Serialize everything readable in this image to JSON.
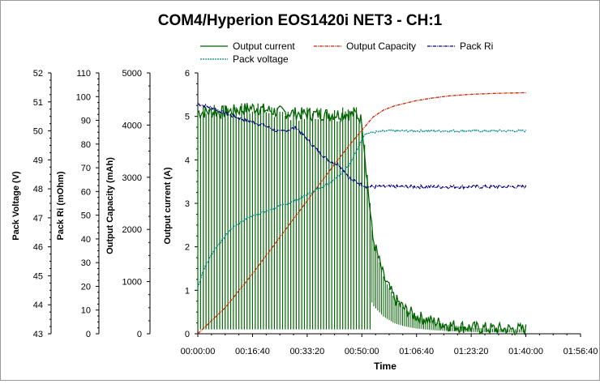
{
  "chart_data": {
    "type": "line",
    "title": "COM4/Hyperion EOS1420i NET3 - CH:1",
    "xlabel": "Time",
    "x_ticks": [
      "00:00:00",
      "00:16:40",
      "00:33:20",
      "00:50:00",
      "01:06:40",
      "01:23:20",
      "01:40:00",
      "01:56:40"
    ],
    "xlim_s": [
      0,
      7000
    ],
    "legend": {
      "placement": "top",
      "entries": [
        {
          "name": "Output current",
          "color": "#006400",
          "style": "solid"
        },
        {
          "name": "Output Capacity",
          "color": "#cc2200",
          "style": "dash-dot"
        },
        {
          "name": "Pack Ri",
          "color": "#000080",
          "style": "dash-dot"
        },
        {
          "name": "Pack voltage",
          "color": "#008b8b",
          "style": "dotted"
        }
      ]
    },
    "axes": [
      {
        "id": "voltage",
        "label": "Pack Voltage (V)",
        "range": [
          43,
          52
        ],
        "ticks": [
          "52",
          "51",
          "50",
          "49",
          "48",
          "47",
          "46",
          "45",
          "44",
          "43"
        ]
      },
      {
        "id": "ri",
        "label": "Pack Ri (mOhm)",
        "range": [
          0,
          110
        ],
        "ticks": [
          "110",
          "100",
          "90",
          "80",
          "70",
          "60",
          "50",
          "40",
          "30",
          "20",
          "10",
          "0"
        ]
      },
      {
        "id": "capacity",
        "label": "Output Capacity (mAh)",
        "range": [
          0,
          5000
        ],
        "ticks": [
          "5000",
          "4000",
          "3000",
          "2000",
          "1000",
          "0"
        ]
      },
      {
        "id": "current",
        "label": "Output current (A)",
        "range": [
          0,
          6
        ],
        "ticks": [
          "6",
          "5",
          "4",
          "3",
          "2",
          "1",
          "0"
        ]
      }
    ],
    "series": [
      {
        "name": "Output current",
        "axis": "current",
        "color": "#006400",
        "x": [
          0,
          500,
          1000,
          1500,
          2000,
          2500,
          2900,
          3000,
          3100,
          3200,
          3400,
          3600,
          3800,
          4000,
          4300,
          4600,
          5000,
          5500,
          6000
        ],
        "y": [
          5.1,
          5.1,
          5.2,
          5.1,
          5.05,
          5.05,
          5.05,
          4.9,
          3.5,
          2.2,
          1.3,
          0.8,
          0.55,
          0.4,
          0.28,
          0.2,
          0.14,
          0.11,
          0.1
        ],
        "pulsed_until_s": 3150
      },
      {
        "name": "Output Capacity",
        "axis": "capacity",
        "color": "#cc2200",
        "x": [
          0,
          500,
          1000,
          1500,
          2000,
          2500,
          2800,
          3000,
          3200,
          3400,
          3600,
          3800,
          4000,
          4300,
          4600,
          5000,
          5500,
          6000
        ],
        "y": [
          0,
          500,
          1150,
          1850,
          2550,
          3250,
          3650,
          3900,
          4150,
          4290,
          4370,
          4420,
          4470,
          4520,
          4560,
          4590,
          4610,
          4620
        ]
      },
      {
        "name": "Pack voltage",
        "axis": "voltage",
        "color": "#008b8b",
        "x": [
          0,
          100,
          300,
          600,
          900,
          1200,
          1500,
          1800,
          2100,
          2400,
          2600,
          2800,
          3000,
          3050,
          3200,
          3500,
          4000,
          5000,
          6000
        ],
        "y": [
          44.6,
          45.2,
          45.9,
          46.6,
          47.0,
          47.2,
          47.4,
          47.6,
          47.9,
          48.2,
          48.5,
          48.9,
          49.7,
          49.9,
          49.95,
          50.0,
          50.0,
          50.0,
          50.0
        ]
      },
      {
        "name": "Pack Ri",
        "axis": "ri",
        "color": "#000080",
        "x": [
          0,
          300,
          600,
          900,
          1200,
          1500,
          1800,
          2000,
          2200,
          2400,
          2600,
          2800,
          3000,
          3100,
          3200,
          4000,
          5000,
          6000
        ],
        "y": [
          97,
          95,
          92,
          90,
          88,
          85,
          87,
          82,
          77,
          73,
          71,
          65,
          63,
          62,
          62,
          62,
          62,
          62
        ]
      }
    ]
  }
}
